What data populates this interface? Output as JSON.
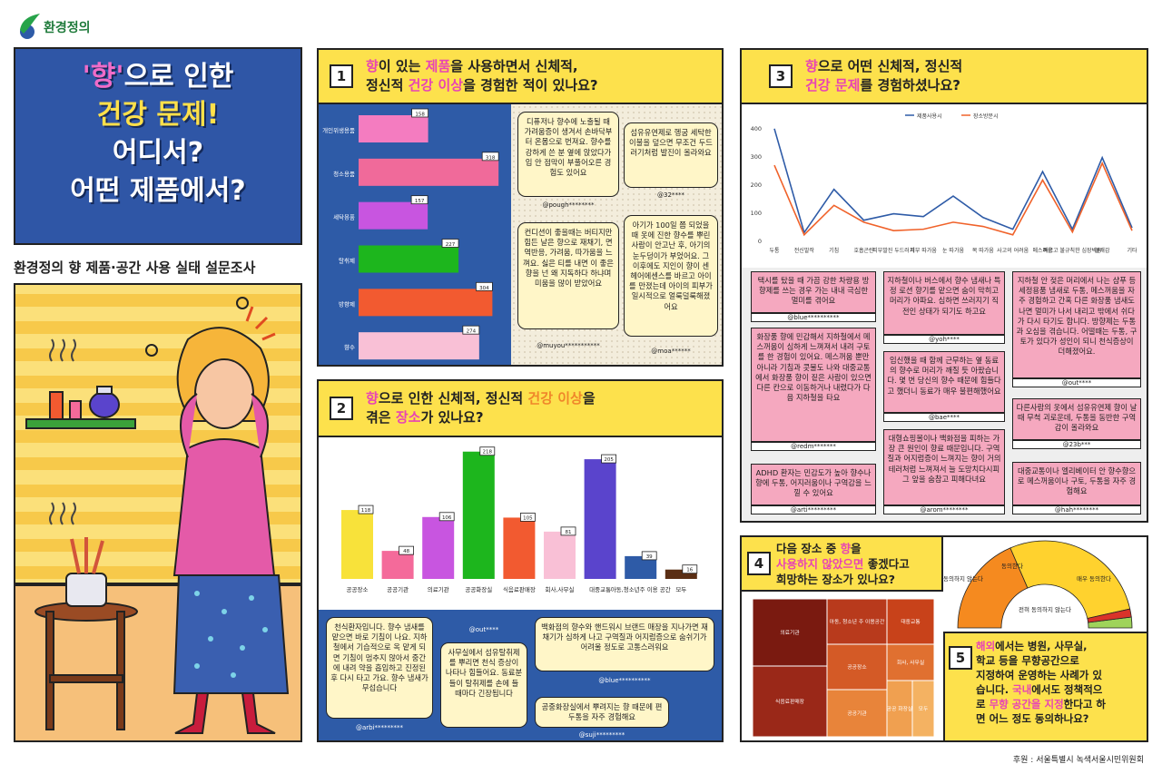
{
  "logo": {
    "text": "환경정의"
  },
  "hero": {
    "line1_q": "'향'",
    "line1_rest": "으로 인한",
    "line2": "건강 문제!",
    "line3": "어디서?",
    "line4": "어떤 제품에서?"
  },
  "subtitle": "환경정의 향 제품·공간 사용 실태 설문조사",
  "q1": {
    "num": "1",
    "t1": "향",
    "t2": "이 있는 ",
    "t3": "제품",
    "t4": "을 사용하면서 신체적,",
    "t5": "정신적 ",
    "t6": "건강 이상",
    "t7": "을 경험한 적이 있나요?"
  },
  "q2": {
    "num": "2",
    "t1": "향",
    "t2": "으로 인한 신체적, 정신적 ",
    "t3": "건강 이상",
    "t4": "을",
    "t5": "겪은 ",
    "t6": "장소",
    "t7": "가 있나요?"
  },
  "q3": {
    "num": "3",
    "t1": "향",
    "t2": "으로 어떤 신체적, 정신적",
    "t3": "건강 문제",
    "t4": "를 경험하셨나요?"
  },
  "q4": {
    "num": "4",
    "t1": "다음 장소 중 ",
    "t2": "향",
    "t3": "을",
    "t4": "사용하지 않았으면",
    "t5": " 좋겠다고",
    "t6": "희망하는 장소가 있나요?"
  },
  "q5": {
    "num": "5",
    "t1": "해외",
    "t2": "에서는 병원, 사무실,",
    "t3": "학교 등을 무향공간으로",
    "t4": "지정하여 운영하는 사례가 있",
    "t5": "습니다. ",
    "t6": "국내",
    "t7": "에서도 정책적으",
    "t8": "로 ",
    "t9": "무향 공간을 지정",
    "t10": "한다고 하",
    "t11": "면 어느 정도 동의하나요?"
  },
  "chart_data": [
    {
      "type": "bar",
      "orientation": "horizontal",
      "title": "향이 있는 제품을 사용하면서 신체적, 정신적 건강 이상을 경험한 적이 있나요?",
      "categories": [
        "개인위생용품",
        "청소용품",
        "세탁용품",
        "탈취제",
        "방향제",
        "향수"
      ],
      "values": [
        158,
        318,
        157,
        227,
        304,
        274
      ],
      "colors": [
        "#f47cc0",
        "#f06a9a",
        "#c855e0",
        "#1db61d",
        "#f25a30",
        "#f9c0d6"
      ],
      "xlim": [
        0,
        330
      ]
    },
    {
      "type": "bar",
      "title": "향으로 인한 신체적, 정신적 건강 이상을 겪은 장소가 있나요?",
      "categories": [
        "공공장소",
        "공공기관",
        "의료기관",
        "공공화장실",
        "식음료판매장",
        "회사,사무실",
        "대중교통",
        "아동,청소년주 이용 공간",
        "모두"
      ],
      "values": [
        118,
        48,
        106,
        218,
        105,
        81,
        205,
        39,
        16
      ],
      "colors": [
        "#f8e23a",
        "#f46a9a",
        "#c855e0",
        "#1db61d",
        "#f25a30",
        "#f9c0d6",
        "#5a44cc",
        "#2e5ba7",
        "#5a2e14"
      ],
      "ylim": [
        0,
        230
      ]
    },
    {
      "type": "line",
      "title": "향으로 어떤 신체적, 정신적 건강 문제를 경험하셨나요?",
      "categories": [
        "두통",
        "전신발작",
        "기침",
        "호흡곤란",
        "피부발진 두드러기",
        "피부 따가움",
        "눈 따가움",
        "목 따가움",
        "사고의 어려움",
        "메스꺼움",
        "빠르고 불규칙한 심장박동",
        "불쾌감",
        "기타"
      ],
      "series": [
        {
          "name": "제품사용시",
          "color": "#2e5ba7",
          "values": [
            398,
            28,
            182,
            72,
            95,
            85,
            158,
            82,
            40,
            245,
            40,
            295,
            45
          ]
        },
        {
          "name": "장소방문시",
          "color": "#f0622a",
          "values": [
            268,
            20,
            125,
            65,
            35,
            40,
            65,
            50,
            20,
            215,
            30,
            275,
            35
          ]
        }
      ],
      "ylim": [
        0,
        420
      ],
      "yticks": [
        "0",
        "100",
        "200",
        "300",
        "400"
      ]
    },
    {
      "type": "heatmap",
      "title": "다음 장소 중 향을 사용하지 않았으면 좋겠다고 희망하는 장소가 있나요?",
      "categories": [
        "의료기관",
        "식음료판매장",
        "아동, 청소년 주 이용공간",
        "대중교통",
        "공공장소",
        "회사, 사무실",
        "공공기관",
        "공공 화장실",
        "모두"
      ]
    },
    {
      "type": "pie",
      "title": "국내에서도 정책적으로 무향 공간을 지정한다고 하면 어느 정도 동의하나요?",
      "categories": [
        "매우 동의한다",
        "동의한다",
        "전혀 동의하지 않는다",
        "동의하지 않는다"
      ],
      "colors": [
        "#f58a1f",
        "#ffd22e",
        "#9fd35a",
        "#d9332a"
      ]
    }
  ],
  "bubbles_q1": [
    {
      "text": "디퓨저나 향수에 노출될 때 가려움증이 생겨서 손바닥부터 온몸으로 번져요. 향수를 강하게 쓴 분 옆에 앉았다가 입 안 점막이 부풀어오른 경험도 있어요",
      "user": "@pough********"
    },
    {
      "text": "섬유유연제로 헹굼 세탁한 이불을 덮으면 무조건 두드러기처럼 발진이 올라와요",
      "user": "@32****"
    },
    {
      "text": "컨디션이 좋을때는 버티지만 힘든 날은 향으로 재채기, 면역반응, 가려움, 따가움을 느껴요. 싫은 티를 내면 이 좋은 향을 넌 왜 지독하다 하냐며 미움을 많이 받았어요",
      "user": "@muyou***********"
    },
    {
      "text": "아기가 100일 쯤 되었을 때 옷에 진한 향수를 뿌린 사람이 안고난 후, 아기의 눈두덩이가 부었어요. 그 이후에도 지인이 향이 센 헤어에센스를 바르고 아이를 만졌는데 아이의 피부가 일시적으로 얼룩덜룩해졌어요",
      "user": "@moa******"
    }
  ],
  "bubbles_q2": [
    {
      "text": "천식환자입니다. 향수 냄새를 맡으면 바로 기침이 나요. 지하철에서 기습적으로 옥 맡게 되면 기침이 멈추지 않아서 중간에 내려 약을 흡입하고 진정된 후 다시 타고 가요. 향수 냄새가 무섭습니다",
      "user": "@arbi*********"
    },
    {
      "text": "사무실에서 섬유탈취제를 뿌리면 천식 증상이 나타나 힘들어요. 동료분들이 탈취제를 손에 들 때마다 긴장됩니다",
      "user": "@out****"
    },
    {
      "text": "백화점의 향수와 핸드워시 브랜드 매장을 지나가면 재채기가 심하게 나고 구역질과 어지럼증으로 숨쉬기가 어려울 정도로 고통스러워요",
      "user": "@blue**********"
    },
    {
      "text": "공중화장실에서 뿌려지는 향 때문에 편두통을 자주 경험해요",
      "user": "@suji*********"
    }
  ],
  "comments_q3": [
    {
      "text": "택시를 탔을 때 가끔 강한 차량용 방향제를 쓰는 경우 가는 내내 극심한 멀미를 겪어요",
      "user": "@blue**********"
    },
    {
      "text": "지하철이나 버스에서 향수 냄새나 특정 로션 향기를 맡으면 숨이 막히고 머리가 아파요. 심하면 쓰러지기 직전인 상태가 되기도 하고요",
      "user": "@yoh****"
    },
    {
      "text": "지하철 안 젖은 머리에서 나는 샴푸 등 세정용품 냄새로 두통, 메스꺼움을 자주 경험하고 간혹 다른 화장품 냄새도 나면 멀미가 나서 내리고 밖에서 쉬다가 다시 타기도 합니다. 방향제는 두통과 오심을 겪습니다. 어떨때는 두통, 구토가 있다가 성인이 되니 천식증상이 더해졌어요.",
      "user": "@out****"
    },
    {
      "text": "화장품 향에 민감해서 지하철에서 메스꺼움이 심하게 느껴져서 내려 구토를 한 경험이 있어요. 메스꺼움 뿐만 아니라 기침과 콧물도 나와 대중교통에서 화장품 향이 짙은 사람이 있으면 다른 칸으로 이동하거나 내렸다가 다음 지하철을 타요",
      "user": "@redm*******"
    },
    {
      "text": "임신했을 때 함께 근무하는 옆 동료의 향수로 머리가 깨질 듯 아팠습니다. 몇 번 당신의 향수 때문에 힘들다고 했더니 동료가 매우 불편해했어요",
      "user": "@bae****"
    },
    {
      "text": "다른사람의 옷에서 섬유유연제 향이 날 때 무척 괴로운데, 두통을 동반한 구역감이 올라와요",
      "user": "@23b***"
    },
    {
      "text": "대형쇼핑몰이나 백화점을 피하는 가장 큰 원인이 향료 때문입니다. 구역질과 어지럼증이 느껴지는 향이 거의 테러처럼 느껴져서 늘 도망치다시피 그 앞을 숨참고 피해다녀요",
      "user": "@arom********"
    },
    {
      "text": "ADHD 환자는 민감도가 높아 향수나 향에 두통, 어지러움이나 구역감을 느낄 수 있어요",
      "user": "@arti*********"
    },
    {
      "text": "대중교통이나 엘리베이터 안 향수향으로 메스꺼움이나 구토, 두통을 자주 경험해요",
      "user": "@hah********"
    }
  ],
  "credit": "후원 : 서울특별시 녹색서울시민위원회"
}
